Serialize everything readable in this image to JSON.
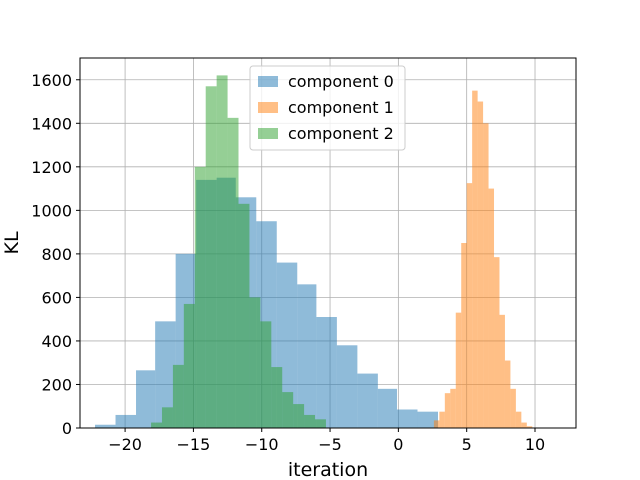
{
  "chart_data": {
    "type": "histogram",
    "title": "",
    "xlabel": "iteration",
    "ylabel": "KL",
    "xlim": [
      -23.3,
      13.0
    ],
    "ylim": [
      0,
      1700
    ],
    "xticks": [
      -20,
      -15,
      -10,
      -5,
      0,
      5,
      10
    ],
    "xtick_labels": [
      "−20",
      "−15",
      "−10",
      "−5",
      "0",
      "5",
      "10"
    ],
    "yticks": [
      0,
      200,
      400,
      600,
      800,
      1000,
      1200,
      1400,
      1600
    ],
    "ytick_labels": [
      "0",
      "200",
      "400",
      "600",
      "800",
      "1000",
      "1200",
      "1400",
      "1600"
    ],
    "grid": true,
    "legend_position": "top-center",
    "series": [
      {
        "name": "component 0",
        "color": "#1f77b4",
        "opacity": 0.5,
        "bin_edges": [
          -22.2,
          -20.7,
          -19.2,
          -17.8,
          -16.3,
          -14.8,
          -13.3,
          -11.9,
          -10.4,
          -8.9,
          -7.4,
          -6.0,
          -4.5,
          -3.0,
          -1.5,
          -0.1,
          1.4,
          2.9
        ],
        "counts": [
          15,
          60,
          265,
          490,
          800,
          1140,
          1150,
          1060,
          950,
          760,
          660,
          510,
          380,
          250,
          180,
          85,
          75
        ]
      },
      {
        "name": "component 1",
        "color": "#ff7f0e",
        "opacity": 0.5,
        "bin_edges": [
          2.6,
          3.0,
          3.4,
          3.8,
          4.2,
          4.6,
          5.0,
          5.4,
          5.8,
          6.2,
          6.6,
          7.0,
          7.4,
          7.8,
          8.2,
          8.6,
          9.0,
          9.4,
          9.8
        ],
        "counts": [
          35,
          75,
          160,
          180,
          530,
          850,
          1125,
          1550,
          1500,
          1400,
          1100,
          785,
          520,
          310,
          180,
          75,
          25,
          8
        ]
      },
      {
        "name": "component 2",
        "color": "#2ca02c",
        "opacity": 0.5,
        "bin_edges": [
          -18.1,
          -17.3,
          -16.5,
          -15.7,
          -14.9,
          -14.1,
          -13.3,
          -12.5,
          -11.7,
          -10.9,
          -10.1,
          -9.3,
          -8.5,
          -7.7,
          -6.9,
          -6.1,
          -5.3
        ],
        "counts": [
          25,
          95,
          290,
          570,
          1200,
          1570,
          1620,
          1425,
          1030,
          600,
          490,
          280,
          165,
          110,
          60,
          40
        ]
      }
    ]
  }
}
